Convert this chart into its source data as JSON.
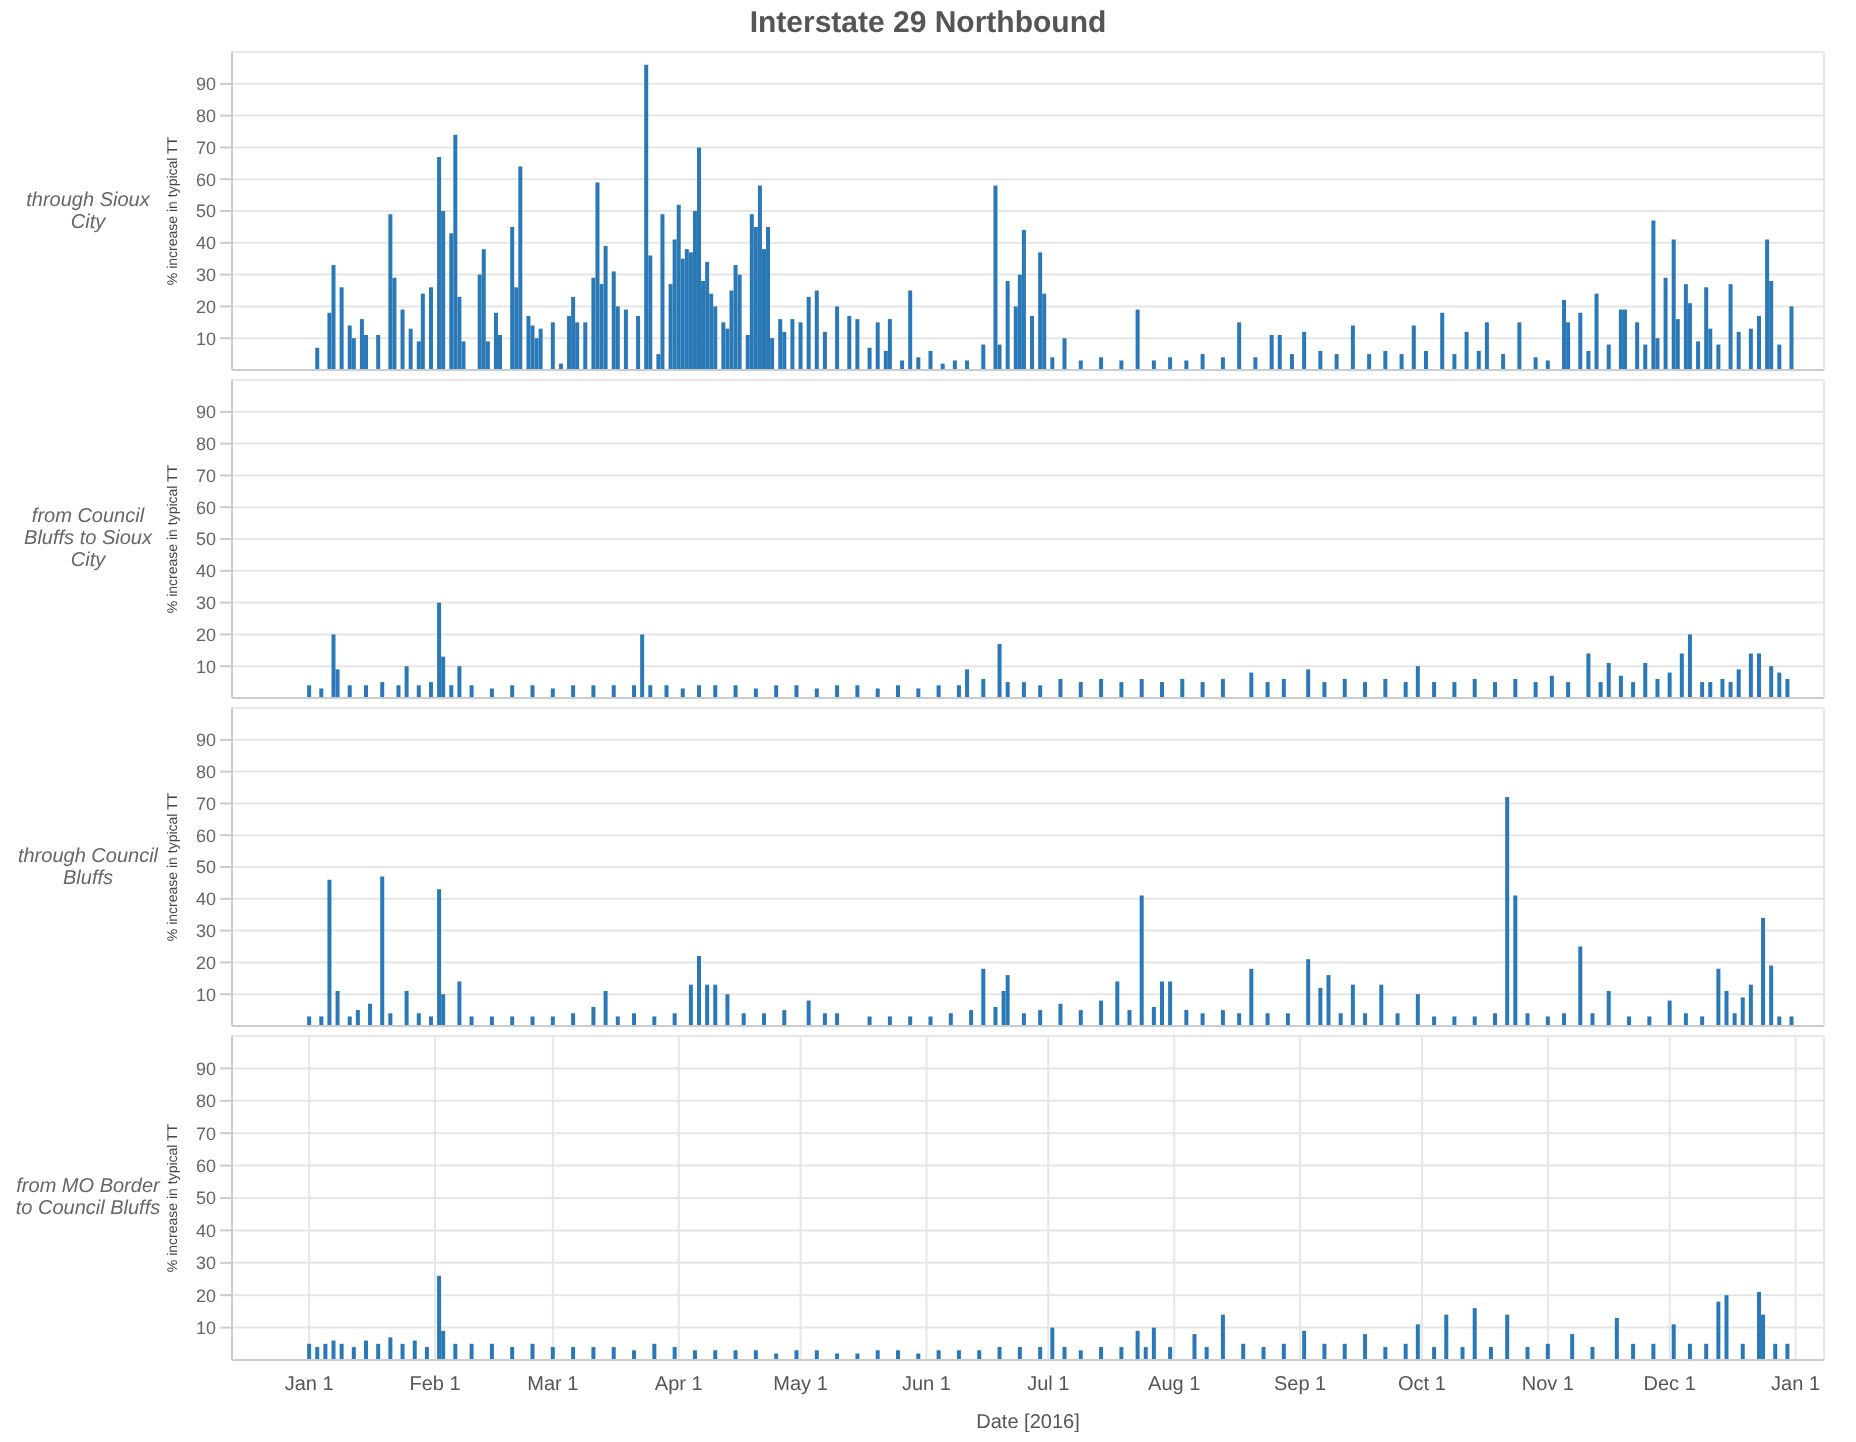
{
  "chart_data": [
    {
      "type": "bar",
      "title": "Interstate 29 Northbound",
      "subtitle": "through Sioux City",
      "ylabel": "% increase in typical TT",
      "xlim": [
        "2015-12-13",
        "2017-01-08"
      ],
      "ylim": [
        0,
        100
      ],
      "yticks": [
        10,
        20,
        30,
        40,
        50,
        60,
        70,
        80,
        90
      ],
      "xticks": [
        {
          "value": "2016-01-01",
          "label": null
        },
        {
          "value": "2016-02-01",
          "label": null
        },
        {
          "value": "2016-03-01",
          "label": null
        },
        {
          "value": "2016-04-01",
          "label": null
        },
        {
          "value": "2016-05-01",
          "label": null
        },
        {
          "value": "2016-06-01",
          "label": null
        },
        {
          "value": "2016-07-01",
          "label": null
        },
        {
          "value": "2016-08-01",
          "label": null
        },
        {
          "value": "2016-09-01",
          "label": null
        },
        {
          "value": "2016-10-01",
          "label": null
        },
        {
          "value": "2016-11-01",
          "label": null
        },
        {
          "value": "2016-12-01",
          "label": null
        },
        {
          "value": "2017-01-01",
          "label": null
        }
      ],
      "grid": true,
      "tick_labels": "y",
      "series": [
        {
          "color": "#2a78b5",
          "x": [
            "2016-01-03",
            "2016-01-06",
            "2016-01-07",
            "2016-01-09",
            "2016-01-11",
            "2016-01-12",
            "2016-01-14",
            "2016-01-15",
            "2016-01-18",
            "2016-01-21",
            "2016-01-22",
            "2016-01-24",
            "2016-01-26",
            "2016-01-28",
            "2016-01-29",
            "2016-01-31",
            "2016-02-02",
            "2016-02-03",
            "2016-02-05",
            "2016-02-06",
            "2016-02-07",
            "2016-02-08",
            "2016-02-12",
            "2016-02-13",
            "2016-02-14",
            "2016-02-16",
            "2016-02-17",
            "2016-02-20",
            "2016-02-21",
            "2016-02-22",
            "2016-02-24",
            "2016-02-25",
            "2016-02-26",
            "2016-02-27",
            "2016-03-01",
            "2016-03-03",
            "2016-03-05",
            "2016-03-06",
            "2016-03-07",
            "2016-03-09",
            "2016-03-11",
            "2016-03-12",
            "2016-03-13",
            "2016-03-14",
            "2016-03-16",
            "2016-03-17",
            "2016-03-19",
            "2016-03-22",
            "2016-03-24",
            "2016-03-25",
            "2016-03-27",
            "2016-03-28",
            "2016-03-30",
            "2016-03-31",
            "2016-04-01",
            "2016-04-02",
            "2016-04-03",
            "2016-04-04",
            "2016-04-05",
            "2016-04-06",
            "2016-04-07",
            "2016-04-08",
            "2016-04-09",
            "2016-04-10",
            "2016-04-12",
            "2016-04-13",
            "2016-04-14",
            "2016-04-15",
            "2016-04-16",
            "2016-04-18",
            "2016-04-19",
            "2016-04-20",
            "2016-04-21",
            "2016-04-22",
            "2016-04-23",
            "2016-04-24",
            "2016-04-26",
            "2016-04-27",
            "2016-04-29",
            "2016-05-01",
            "2016-05-03",
            "2016-05-05",
            "2016-05-07",
            "2016-05-10",
            "2016-05-13",
            "2016-05-15",
            "2016-05-18",
            "2016-05-20",
            "2016-05-22",
            "2016-05-23",
            "2016-05-26",
            "2016-05-28",
            "2016-05-30",
            "2016-06-02",
            "2016-06-05",
            "2016-06-08",
            "2016-06-11",
            "2016-06-15",
            "2016-06-18",
            "2016-06-19",
            "2016-06-21",
            "2016-06-23",
            "2016-06-24",
            "2016-06-25",
            "2016-06-27",
            "2016-06-29",
            "2016-06-30",
            "2016-07-02",
            "2016-07-05",
            "2016-07-09",
            "2016-07-14",
            "2016-07-19",
            "2016-07-23",
            "2016-07-27",
            "2016-07-31",
            "2016-08-04",
            "2016-08-08",
            "2016-08-13",
            "2016-08-17",
            "2016-08-21",
            "2016-08-25",
            "2016-08-27",
            "2016-08-30",
            "2016-09-02",
            "2016-09-06",
            "2016-09-10",
            "2016-09-14",
            "2016-09-18",
            "2016-09-22",
            "2016-09-26",
            "2016-09-29",
            "2016-10-02",
            "2016-10-06",
            "2016-10-09",
            "2016-10-12",
            "2016-10-15",
            "2016-10-17",
            "2016-10-21",
            "2016-10-25",
            "2016-10-29",
            "2016-11-01",
            "2016-11-05",
            "2016-11-06",
            "2016-11-09",
            "2016-11-11",
            "2016-11-13",
            "2016-11-16",
            "2016-11-19",
            "2016-11-20",
            "2016-11-23",
            "2016-11-25",
            "2016-11-27",
            "2016-11-28",
            "2016-11-30",
            "2016-12-02",
            "2016-12-03",
            "2016-12-05",
            "2016-12-06",
            "2016-12-08",
            "2016-12-10",
            "2016-12-11",
            "2016-12-13",
            "2016-12-16",
            "2016-12-18",
            "2016-12-21",
            "2016-12-23",
            "2016-12-25",
            "2016-12-26",
            "2016-12-28",
            "2016-12-31"
          ],
          "values": [
            7,
            18,
            33,
            26,
            14,
            10,
            16,
            11,
            11,
            49,
            29,
            19,
            13,
            9,
            24,
            26,
            67,
            50,
            43,
            74,
            23,
            9,
            30,
            38,
            9,
            18,
            11,
            45,
            26,
            64,
            17,
            14,
            10,
            13,
            15,
            2,
            17,
            23,
            15,
            15,
            29,
            59,
            27,
            39,
            31,
            20,
            19,
            17,
            96,
            36,
            5,
            49,
            27,
            41,
            52,
            35,
            38,
            37,
            50,
            70,
            28,
            34,
            24,
            20,
            15,
            13,
            25,
            33,
            30,
            11,
            49,
            45,
            58,
            38,
            45,
            10,
            16,
            12,
            16,
            15,
            23,
            25,
            12,
            20,
            17,
            16,
            7,
            15,
            6,
            16,
            3,
            25,
            4,
            6,
            2,
            3,
            3,
            8,
            58,
            8,
            28,
            20,
            30,
            44,
            17,
            37,
            24,
            4,
            10,
            3,
            4,
            3,
            19,
            3,
            4,
            3,
            5,
            4,
            15,
            4,
            11,
            11,
            5,
            12,
            6,
            5,
            14,
            5,
            6,
            5,
            14,
            6,
            18,
            5,
            12,
            6,
            15,
            5,
            15,
            4,
            3,
            22,
            15,
            18,
            6,
            24,
            8,
            19,
            19,
            15,
            8,
            47,
            10,
            29,
            41,
            16,
            27,
            21,
            9,
            26,
            13,
            8,
            27,
            12,
            13,
            17,
            41,
            28,
            8,
            20
          ]
        }
      ]
    },
    {
      "type": "bar",
      "subtitle": "from Council Bluffs to Sioux City",
      "ylabel": "% increase in typical TT",
      "xlim": [
        "2015-12-13",
        "2017-01-08"
      ],
      "ylim": [
        0,
        100
      ],
      "yticks": [
        10,
        20,
        30,
        40,
        50,
        60,
        70,
        80,
        90
      ],
      "xticks": [
        {
          "value": "2016-01-01",
          "label": null
        },
        {
          "value": "2016-02-01",
          "label": null
        },
        {
          "value": "2016-03-01",
          "label": null
        },
        {
          "value": "2016-04-01",
          "label": null
        },
        {
          "value": "2016-05-01",
          "label": null
        },
        {
          "value": "2016-06-01",
          "label": null
        },
        {
          "value": "2016-07-01",
          "label": null
        },
        {
          "value": "2016-08-01",
          "label": null
        },
        {
          "value": "2016-09-01",
          "label": null
        },
        {
          "value": "2016-10-01",
          "label": null
        },
        {
          "value": "2016-11-01",
          "label": null
        },
        {
          "value": "2016-12-01",
          "label": null
        },
        {
          "value": "2017-01-01",
          "label": null
        }
      ],
      "grid": true,
      "tick_labels": "y",
      "series": [
        {
          "color": "#2a78b5",
          "x": [
            "2016-01-01",
            "2016-01-04",
            "2016-01-07",
            "2016-01-08",
            "2016-01-11",
            "2016-01-15",
            "2016-01-19",
            "2016-01-23",
            "2016-01-25",
            "2016-01-28",
            "2016-01-31",
            "2016-02-02",
            "2016-02-03",
            "2016-02-05",
            "2016-02-07",
            "2016-02-10",
            "2016-02-15",
            "2016-02-20",
            "2016-02-25",
            "2016-03-01",
            "2016-03-06",
            "2016-03-11",
            "2016-03-16",
            "2016-03-21",
            "2016-03-23",
            "2016-03-25",
            "2016-03-29",
            "2016-04-02",
            "2016-04-06",
            "2016-04-10",
            "2016-04-15",
            "2016-04-20",
            "2016-04-25",
            "2016-04-30",
            "2016-05-05",
            "2016-05-10",
            "2016-05-15",
            "2016-05-20",
            "2016-05-25",
            "2016-05-30",
            "2016-06-04",
            "2016-06-09",
            "2016-06-11",
            "2016-06-15",
            "2016-06-19",
            "2016-06-21",
            "2016-06-25",
            "2016-06-29",
            "2016-07-04",
            "2016-07-09",
            "2016-07-14",
            "2016-07-19",
            "2016-07-24",
            "2016-07-29",
            "2016-08-03",
            "2016-08-08",
            "2016-08-13",
            "2016-08-20",
            "2016-08-24",
            "2016-08-28",
            "2016-09-03",
            "2016-09-07",
            "2016-09-12",
            "2016-09-17",
            "2016-09-22",
            "2016-09-27",
            "2016-09-30",
            "2016-10-04",
            "2016-10-09",
            "2016-10-14",
            "2016-10-19",
            "2016-10-24",
            "2016-10-29",
            "2016-11-02",
            "2016-11-06",
            "2016-11-11",
            "2016-11-14",
            "2016-11-16",
            "2016-11-19",
            "2016-11-22",
            "2016-11-25",
            "2016-11-28",
            "2016-12-01",
            "2016-12-04",
            "2016-12-06",
            "2016-12-09",
            "2016-12-11",
            "2016-12-14",
            "2016-12-16",
            "2016-12-18",
            "2016-12-21",
            "2016-12-23",
            "2016-12-26",
            "2016-12-28",
            "2016-12-30"
          ],
          "values": [
            4,
            3,
            20,
            9,
            4,
            4,
            5,
            4,
            10,
            4,
            5,
            30,
            13,
            4,
            10,
            4,
            3,
            4,
            4,
            3,
            4,
            4,
            4,
            4,
            20,
            4,
            4,
            3,
            4,
            4,
            4,
            3,
            4,
            4,
            3,
            4,
            4,
            3,
            4,
            3,
            4,
            4,
            9,
            6,
            17,
            5,
            5,
            4,
            6,
            5,
            6,
            5,
            6,
            5,
            6,
            5,
            6,
            8,
            5,
            6,
            9,
            5,
            6,
            5,
            6,
            5,
            10,
            5,
            5,
            6,
            5,
            6,
            5,
            7,
            5,
            14,
            5,
            11,
            7,
            5,
            11,
            6,
            8,
            14,
            20,
            5,
            5,
            6,
            5,
            9,
            14,
            14,
            10,
            8,
            6
          ]
        }
      ]
    },
    {
      "type": "bar",
      "subtitle": "through Council Bluffs",
      "ylabel": "% increase in typical TT",
      "xlim": [
        "2015-12-13",
        "2017-01-08"
      ],
      "ylim": [
        0,
        100
      ],
      "yticks": [
        10,
        20,
        30,
        40,
        50,
        60,
        70,
        80,
        90
      ],
      "xticks": [
        {
          "value": "2016-01-01",
          "label": null
        },
        {
          "value": "2016-02-01",
          "label": null
        },
        {
          "value": "2016-03-01",
          "label": null
        },
        {
          "value": "2016-04-01",
          "label": null
        },
        {
          "value": "2016-05-01",
          "label": null
        },
        {
          "value": "2016-06-01",
          "label": null
        },
        {
          "value": "2016-07-01",
          "label": null
        },
        {
          "value": "2016-08-01",
          "label": null
        },
        {
          "value": "2016-09-01",
          "label": null
        },
        {
          "value": "2016-10-01",
          "label": null
        },
        {
          "value": "2016-11-01",
          "label": null
        },
        {
          "value": "2016-12-01",
          "label": null
        },
        {
          "value": "2017-01-01",
          "label": null
        }
      ],
      "grid": true,
      "tick_labels": "y",
      "series": [
        {
          "color": "#2a78b5",
          "x": [
            "2016-01-01",
            "2016-01-04",
            "2016-01-06",
            "2016-01-08",
            "2016-01-11",
            "2016-01-13",
            "2016-01-16",
            "2016-01-19",
            "2016-01-21",
            "2016-01-25",
            "2016-01-28",
            "2016-01-31",
            "2016-02-02",
            "2016-02-03",
            "2016-02-07",
            "2016-02-10",
            "2016-02-15",
            "2016-02-20",
            "2016-02-25",
            "2016-03-01",
            "2016-03-06",
            "2016-03-11",
            "2016-03-14",
            "2016-03-17",
            "2016-03-21",
            "2016-03-26",
            "2016-03-31",
            "2016-04-04",
            "2016-04-06",
            "2016-04-08",
            "2016-04-10",
            "2016-04-13",
            "2016-04-17",
            "2016-04-22",
            "2016-04-27",
            "2016-05-03",
            "2016-05-07",
            "2016-05-10",
            "2016-05-18",
            "2016-05-23",
            "2016-05-28",
            "2016-06-02",
            "2016-06-07",
            "2016-06-12",
            "2016-06-15",
            "2016-06-18",
            "2016-06-20",
            "2016-06-21",
            "2016-06-25",
            "2016-06-29",
            "2016-07-04",
            "2016-07-09",
            "2016-07-14",
            "2016-07-18",
            "2016-07-21",
            "2016-07-24",
            "2016-07-27",
            "2016-07-29",
            "2016-07-31",
            "2016-08-04",
            "2016-08-08",
            "2016-08-13",
            "2016-08-17",
            "2016-08-20",
            "2016-08-24",
            "2016-08-29",
            "2016-09-03",
            "2016-09-06",
            "2016-09-08",
            "2016-09-11",
            "2016-09-14",
            "2016-09-17",
            "2016-09-21",
            "2016-09-25",
            "2016-09-30",
            "2016-10-04",
            "2016-10-09",
            "2016-10-14",
            "2016-10-19",
            "2016-10-22",
            "2016-10-24",
            "2016-10-27",
            "2016-11-01",
            "2016-11-05",
            "2016-11-09",
            "2016-11-12",
            "2016-11-16",
            "2016-11-21",
            "2016-11-26",
            "2016-12-01",
            "2016-12-05",
            "2016-12-09",
            "2016-12-13",
            "2016-12-15",
            "2016-12-17",
            "2016-12-19",
            "2016-12-21",
            "2016-12-24",
            "2016-12-26",
            "2016-12-28",
            "2016-12-31"
          ],
          "values": [
            3,
            3,
            46,
            11,
            3,
            5,
            7,
            47,
            4,
            11,
            4,
            3,
            43,
            10,
            14,
            3,
            3,
            3,
            3,
            3,
            4,
            6,
            11,
            3,
            4,
            3,
            4,
            13,
            22,
            13,
            13,
            10,
            4,
            4,
            5,
            8,
            4,
            4,
            3,
            3,
            3,
            3,
            4,
            5,
            18,
            6,
            11,
            16,
            4,
            5,
            7,
            5,
            8,
            14,
            5,
            41,
            6,
            14,
            14,
            5,
            4,
            5,
            4,
            18,
            4,
            4,
            21,
            12,
            16,
            4,
            13,
            4,
            13,
            4,
            10,
            3,
            3,
            3,
            4,
            72,
            41,
            4,
            3,
            4,
            25,
            4,
            11,
            3,
            3,
            8,
            4,
            3,
            18,
            11,
            4,
            9,
            13,
            34,
            19,
            3,
            3
          ]
        }
      ]
    },
    {
      "type": "bar",
      "subtitle": "from MO Border to Council Bluffs",
      "ylabel": "% increase in typical TT",
      "xlabel": "Date [2016]",
      "xlim": [
        "2015-12-13",
        "2017-01-08"
      ],
      "ylim": [
        0,
        100
      ],
      "yticks": [
        10,
        20,
        30,
        40,
        50,
        60,
        70,
        80,
        90
      ],
      "xticks": [
        {
          "value": "2016-01-01",
          "label": "Jan 1"
        },
        {
          "value": "2016-02-01",
          "label": "Feb 1"
        },
        {
          "value": "2016-03-01",
          "label": "Mar 1"
        },
        {
          "value": "2016-04-01",
          "label": "Apr 1"
        },
        {
          "value": "2016-05-01",
          "label": "May 1"
        },
        {
          "value": "2016-06-01",
          "label": "Jun 1"
        },
        {
          "value": "2016-07-01",
          "label": "Jul 1"
        },
        {
          "value": "2016-08-01",
          "label": "Aug 1"
        },
        {
          "value": "2016-09-01",
          "label": "Sep 1"
        },
        {
          "value": "2016-10-01",
          "label": "Oct 1"
        },
        {
          "value": "2016-11-01",
          "label": "Nov 1"
        },
        {
          "value": "2016-12-01",
          "label": "Dec 1"
        },
        {
          "value": "2017-01-01",
          "label": "Jan 1"
        }
      ],
      "grid": true,
      "series": [
        {
          "color": "#2a78b5",
          "x": [
            "2016-01-01",
            "2016-01-03",
            "2016-01-05",
            "2016-01-07",
            "2016-01-09",
            "2016-01-12",
            "2016-01-15",
            "2016-01-18",
            "2016-01-21",
            "2016-01-24",
            "2016-01-27",
            "2016-01-30",
            "2016-02-02",
            "2016-02-03",
            "2016-02-06",
            "2016-02-10",
            "2016-02-15",
            "2016-02-20",
            "2016-02-25",
            "2016-03-01",
            "2016-03-06",
            "2016-03-11",
            "2016-03-16",
            "2016-03-21",
            "2016-03-26",
            "2016-03-31",
            "2016-04-05",
            "2016-04-10",
            "2016-04-15",
            "2016-04-20",
            "2016-04-25",
            "2016-04-30",
            "2016-05-05",
            "2016-05-10",
            "2016-05-15",
            "2016-05-20",
            "2016-05-25",
            "2016-05-30",
            "2016-06-04",
            "2016-06-09",
            "2016-06-14",
            "2016-06-19",
            "2016-06-24",
            "2016-06-29",
            "2016-07-02",
            "2016-07-05",
            "2016-07-09",
            "2016-07-14",
            "2016-07-19",
            "2016-07-23",
            "2016-07-25",
            "2016-07-27",
            "2016-07-31",
            "2016-08-06",
            "2016-08-09",
            "2016-08-13",
            "2016-08-18",
            "2016-08-23",
            "2016-08-28",
            "2016-09-02",
            "2016-09-07",
            "2016-09-12",
            "2016-09-17",
            "2016-09-22",
            "2016-09-27",
            "2016-09-30",
            "2016-10-04",
            "2016-10-07",
            "2016-10-11",
            "2016-10-14",
            "2016-10-18",
            "2016-10-22",
            "2016-10-27",
            "2016-11-01",
            "2016-11-07",
            "2016-11-12",
            "2016-11-18",
            "2016-11-22",
            "2016-11-27",
            "2016-12-02",
            "2016-12-06",
            "2016-12-10",
            "2016-12-13",
            "2016-12-15",
            "2016-12-19",
            "2016-12-23",
            "2016-12-24",
            "2016-12-27",
            "2016-12-30"
          ],
          "values": [
            5,
            4,
            5,
            6,
            5,
            4,
            6,
            5,
            7,
            5,
            6,
            4,
            26,
            9,
            5,
            5,
            5,
            4,
            5,
            4,
            4,
            4,
            4,
            3,
            5,
            4,
            3,
            3,
            3,
            3,
            2,
            3,
            3,
            2,
            2,
            3,
            3,
            2,
            3,
            3,
            3,
            4,
            4,
            4,
            10,
            4,
            3,
            4,
            4,
            9,
            4,
            10,
            4,
            8,
            4,
            14,
            5,
            4,
            5,
            9,
            5,
            5,
            8,
            4,
            5,
            11,
            4,
            14,
            4,
            16,
            4,
            14,
            4,
            5,
            8,
            4,
            13,
            5,
            5,
            11,
            5,
            5,
            18,
            20,
            5,
            21,
            14,
            5,
            5
          ]
        }
      ]
    }
  ]
}
